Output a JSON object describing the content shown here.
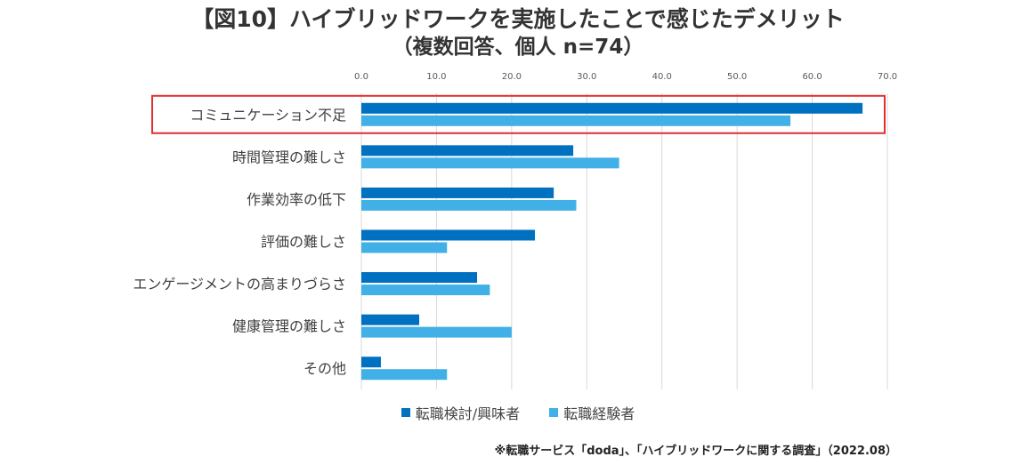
{
  "chart_data": {
    "type": "bar",
    "orientation": "horizontal",
    "title": "【図10】ハイブリッドワークを実施したことで感じたデメリット",
    "subtitle": "（複数回答、個人 n=74）",
    "categories": [
      "コミュニケーション不足",
      "時間管理の難しさ",
      "作業効率の低下",
      "評価の難しさ",
      "エンゲージメントの高まりづらさ",
      "健康管理の難しさ",
      "その他"
    ],
    "series": [
      {
        "name": "転職検討/興味者",
        "color": "#0070c0",
        "values": [
          66.7,
          28.2,
          25.6,
          23.1,
          15.4,
          7.7,
          2.6
        ]
      },
      {
        "name": "転職経験者",
        "color": "#41b0e6",
        "values": [
          57.1,
          34.3,
          28.6,
          11.4,
          17.1,
          20.0,
          11.4
        ]
      }
    ],
    "xlim": [
      0,
      70
    ],
    "x_ticks": [
      "0.0",
      "10.0",
      "20.0",
      "30.0",
      "40.0",
      "50.0",
      "60.0",
      "70.0"
    ],
    "grid": true,
    "highlighted_category": "コミュニケーション不足",
    "highlight_color": "#e03030",
    "legend_position": "bottom",
    "source": "※転職サービス「doda」、「ハイブリッドワークに関する調査」（2022.08）"
  }
}
